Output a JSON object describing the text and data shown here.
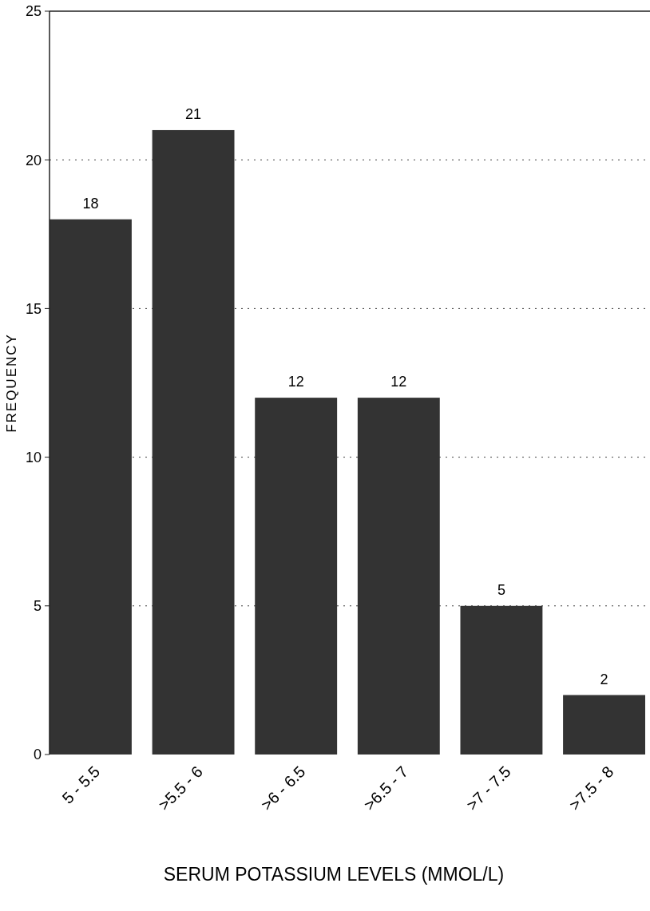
{
  "chart_data": {
    "type": "bar",
    "xlabel": "SERUM POTASSIUM LEVELS (MMOL/L)",
    "ylabel": "FREQUENCY",
    "categories": [
      "5 - 5.5",
      ">5.5 - 6",
      ">6 - 6.5",
      ">6.5 - 7",
      ">7 - 7.5",
      ">7.5 - 8"
    ],
    "values": [
      18,
      21,
      12,
      12,
      5,
      2
    ],
    "color": "#333333",
    "ylim": [
      0,
      25
    ],
    "yticks": [
      0,
      5,
      10,
      15,
      20,
      25
    ],
    "grid": "y",
    "data_labels": true
  }
}
